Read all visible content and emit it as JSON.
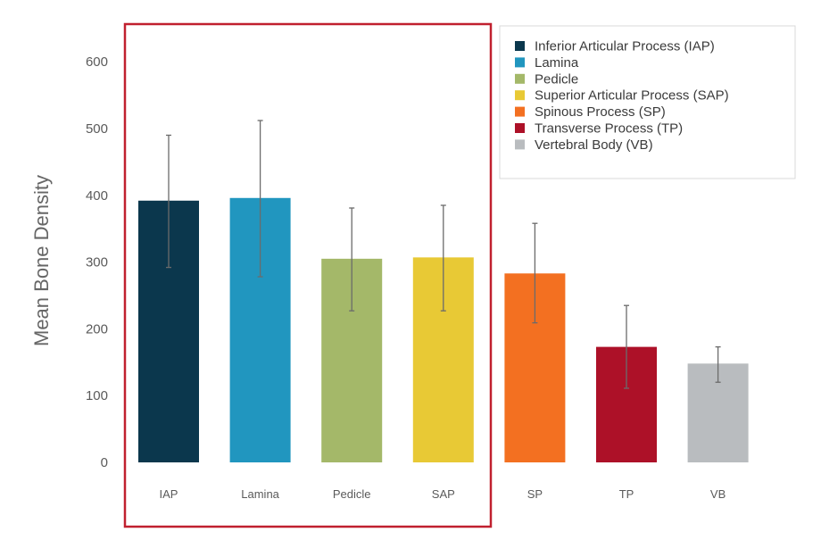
{
  "chart_data": {
    "type": "bar",
    "title": "",
    "xlabel": "",
    "ylabel": "Mean Bone Density",
    "ylim": [
      0,
      650
    ],
    "yticks": [
      0,
      100,
      200,
      300,
      400,
      500,
      600
    ],
    "grid": false,
    "legend_position": "top-right",
    "categories": [
      "IAP",
      "Lamina",
      "Pedicle",
      "SAP",
      "SP",
      "TP",
      "VB"
    ],
    "legend_labels": [
      "Inferior Articular Process (IAP)",
      "Lamina",
      "Pedicle",
      "Superior Articular Process (SAP)",
      "Spinous Process (SP)",
      "Transverse Process (TP)",
      "Vertebral Body (VB)"
    ],
    "values": [
      392,
      396,
      305,
      307,
      283,
      173,
      148
    ],
    "error_low": [
      292,
      278,
      227,
      227,
      209,
      111,
      120
    ],
    "error_high": [
      490,
      512,
      381,
      385,
      358,
      235,
      173
    ],
    "colors": [
      "#0b374d",
      "#2196bf",
      "#a4b869",
      "#e8c935",
      "#f37021",
      "#ad1128",
      "#b9bcbf"
    ],
    "highlight_categories": [
      "IAP",
      "Lamina",
      "Pedicle",
      "SAP"
    ],
    "highlight_color": "#c0202f"
  }
}
